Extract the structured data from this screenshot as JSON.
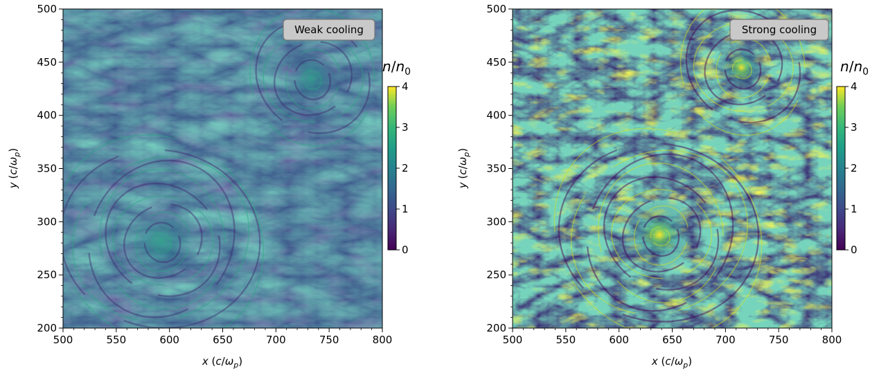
{
  "chart_data": [
    {
      "type": "heatmap",
      "annotation": "Weak cooling",
      "xlabel": "x (c/ω_p)",
      "xlabel_parts": {
        "var": "x",
        "paren_open": " (",
        "c": "c",
        "slash": "/",
        "omega": "ω",
        "sub": "p",
        "paren_close": ")"
      },
      "ylabel": "y (c/ω_p)",
      "ylabel_parts": {
        "var": "y",
        "paren_open": " (",
        "c": "c",
        "slash": "/",
        "omega": "ω",
        "sub": "p",
        "paren_close": ")"
      },
      "xlim": [
        500,
        800
      ],
      "ylim": [
        200,
        500
      ],
      "xticks": [
        500,
        550,
        600,
        650,
        700,
        750,
        800
      ],
      "yticks": [
        200,
        250,
        300,
        350,
        400,
        450,
        500
      ],
      "colorbar": {
        "label": "n/n_0",
        "label_parts": {
          "n": "n",
          "slash": "/",
          "n0": "n",
          "sub": "0"
        },
        "range": [
          0,
          4
        ],
        "ticks": [
          0,
          1,
          2,
          3,
          4
        ],
        "colormap": "viridis"
      },
      "features": [
        {
          "kind": "vortex",
          "x": 592,
          "y": 282
        },
        {
          "kind": "vortex",
          "x": 733,
          "y": 435
        }
      ],
      "colors": {
        "background": "#3e5a8c",
        "bright": "#27a87f",
        "dark": "#3f2a6f"
      }
    },
    {
      "type": "heatmap",
      "annotation": "Strong cooling",
      "xlabel": "x (c/ω_p)",
      "xlabel_parts": {
        "var": "x",
        "paren_open": " (",
        "c": "c",
        "slash": "/",
        "omega": "ω",
        "sub": "p",
        "paren_close": ")"
      },
      "ylabel": "y (c/ω_p)",
      "ylabel_parts": {
        "var": "y",
        "paren_open": " (",
        "c": "c",
        "slash": "/",
        "omega": "ω",
        "sub": "p",
        "paren_close": ")"
      },
      "xlim": [
        500,
        800
      ],
      "ylim": [
        200,
        500
      ],
      "xticks": [
        500,
        550,
        600,
        650,
        700,
        750,
        800
      ],
      "yticks": [
        200,
        250,
        300,
        350,
        400,
        450,
        500
      ],
      "colorbar": {
        "label": "n/n_0",
        "label_parts": {
          "n": "n",
          "slash": "/",
          "n0": "n",
          "sub": "0"
        },
        "range": [
          0,
          4
        ],
        "ticks": [
          0,
          1,
          2,
          3,
          4
        ],
        "colormap": "viridis"
      },
      "features": [
        {
          "kind": "vortex",
          "x": 638,
          "y": 288
        },
        {
          "kind": "vortex",
          "x": 715,
          "y": 445
        }
      ],
      "colors": {
        "background": "#3b2e74",
        "bright": "#d8e219",
        "dark": "#440154"
      }
    }
  ]
}
